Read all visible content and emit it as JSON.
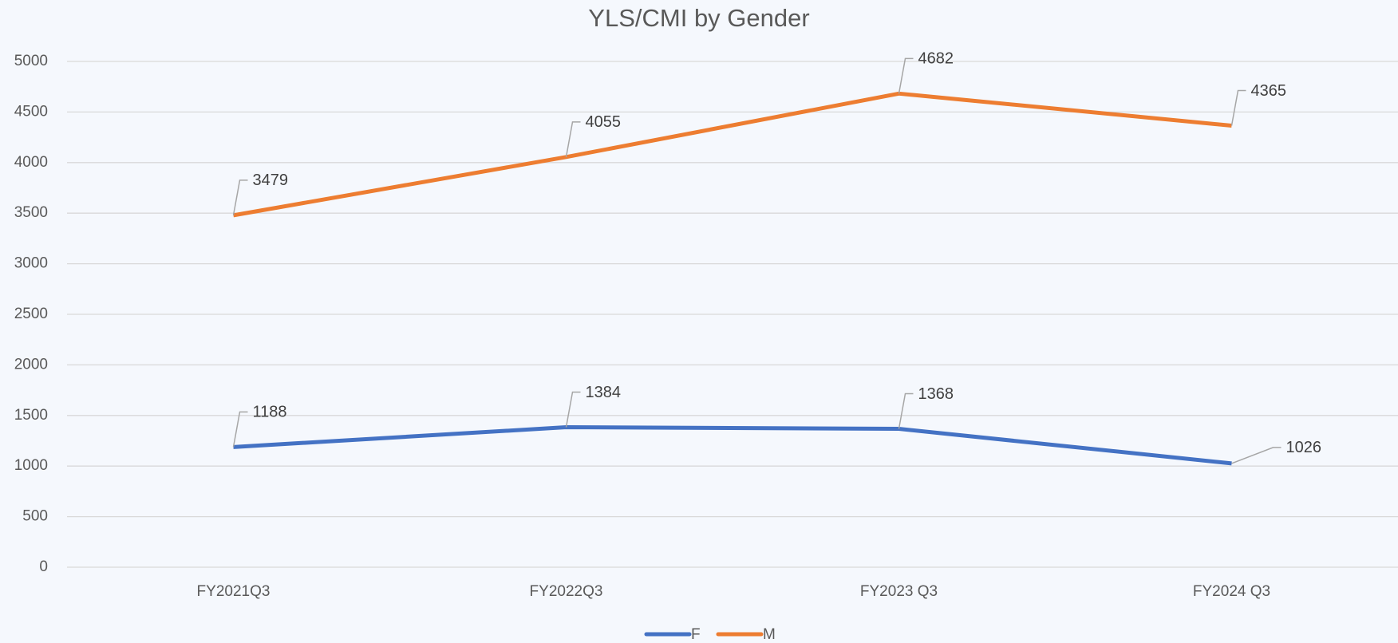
{
  "chart_data": {
    "type": "line",
    "title": "YLS/CMI by Gender",
    "categories": [
      "FY2021Q3",
      "FY2022Q3",
      "FY2023 Q3",
      "FY2024 Q3"
    ],
    "series": [
      {
        "name": "F",
        "color": "#4472c4",
        "values": [
          1188,
          1384,
          1368,
          1026
        ]
      },
      {
        "name": "M",
        "color": "#ed7d31",
        "values": [
          3479,
          4055,
          4682,
          4365
        ]
      }
    ],
    "ylim": [
      0,
      5000
    ],
    "yticks": [
      0,
      500,
      1000,
      1500,
      2000,
      2500,
      3000,
      3500,
      4000,
      4500,
      5000
    ],
    "grid": true,
    "legend": "bottom"
  }
}
